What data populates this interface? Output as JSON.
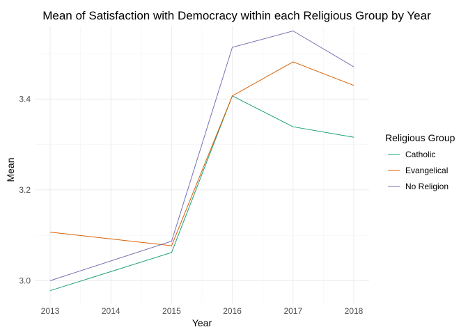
{
  "chart_data": {
    "type": "line",
    "title": "Mean of Satisfaction with Democracy within each Religious Group by Year",
    "xlabel": "Year",
    "ylabel": "Mean",
    "x": [
      2013,
      2015,
      2016,
      2017,
      2018
    ],
    "x_ticks": [
      2013,
      2014,
      2015,
      2016,
      2017,
      2018
    ],
    "y_ticks": [
      3.0,
      3.2,
      3.4
    ],
    "y_tick_labels": [
      "3.0",
      "3.2",
      "3.4"
    ],
    "xlim": [
      2013,
      2018
    ],
    "ylim": [
      2.95,
      3.56
    ],
    "grid": true,
    "legend": {
      "title": "Religious Group",
      "placement": "right"
    },
    "series": [
      {
        "name": "Catholic",
        "color": "#1b9e77",
        "values": [
          2.978,
          3.062,
          3.407,
          3.339,
          3.316
        ]
      },
      {
        "name": "Evangelical",
        "color": "#d95f02",
        "values": [
          3.107,
          3.077,
          3.407,
          3.482,
          3.43
        ]
      },
      {
        "name": "No Religion",
        "color": "#7570b3",
        "values": [
          3.0,
          3.087,
          3.514,
          3.55,
          3.471
        ]
      }
    ]
  }
}
